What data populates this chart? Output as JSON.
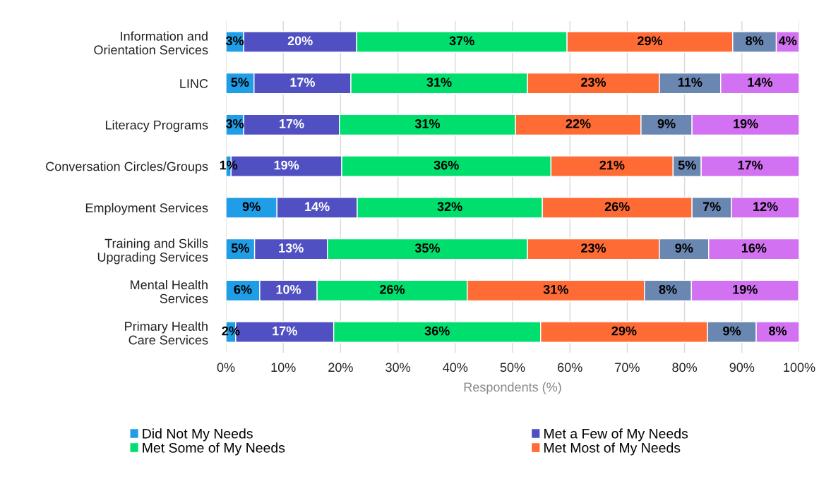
{
  "chart_data": {
    "type": "bar",
    "orientation": "horizontal",
    "stacked": true,
    "categories": [
      "Information and\nOrientation Services",
      "LINC",
      "Literacy Programs",
      "Conversation Circles/Groups",
      "Employment Services",
      "Training and Skills\nUpgrading Services",
      "Mental Health\nServices",
      "Primary Health\nCare Services"
    ],
    "series": [
      {
        "name": "Did Not My Needs",
        "color": "#1f9de6",
        "values": [
          3.1,
          4.9,
          3.1,
          0.9,
          8.9,
          5.0,
          5.9,
          1.7
        ],
        "value_labels": [
          "3%",
          "5%",
          "3%",
          "1%",
          "9%",
          "5%",
          "6%",
          "2%"
        ]
      },
      {
        "name": "Met a Few of My Needs",
        "color": "#5150c2",
        "values": [
          19.7,
          16.9,
          16.7,
          19.3,
          14.0,
          12.7,
          10.0,
          17.1
        ],
        "value_labels": [
          "20%",
          "17%",
          "17%",
          "19%",
          "14%",
          "13%",
          "10%",
          "17%"
        ]
      },
      {
        "name": "Met Some of My Needs",
        "color": "#00de6e",
        "values": [
          36.7,
          30.8,
          30.7,
          36.5,
          32.3,
          34.9,
          26.2,
          36.1
        ],
        "value_labels": [
          "37%",
          "31%",
          "31%",
          "36%",
          "32%",
          "35%",
          "26%",
          "36%"
        ]
      },
      {
        "name": "Met Most of My Needs",
        "color": "#ff6b35",
        "values": [
          28.9,
          23.0,
          21.9,
          21.3,
          26.1,
          23.0,
          30.9,
          29.1
        ],
        "value_labels": [
          "29%",
          "23%",
          "22%",
          "21%",
          "26%",
          "23%",
          "31%",
          "29%"
        ]
      },
      {
        "color": "#6a87b2",
        "values": [
          7.6,
          10.7,
          8.9,
          4.9,
          6.9,
          8.6,
          8.2,
          8.5
        ],
        "value_labels": [
          "8%",
          "11%",
          "9%",
          "5%",
          "7%",
          "9%",
          "8%",
          "9%"
        ]
      },
      {
        "color": "#d272f2",
        "values": [
          4.0,
          13.7,
          18.7,
          17.1,
          11.8,
          15.8,
          18.7,
          7.5
        ],
        "value_labels": [
          "4%",
          "14%",
          "19%",
          "17%",
          "12%",
          "16%",
          "19%",
          "8%"
        ]
      }
    ],
    "xlabel": "Respondents (%)",
    "xlim": [
      0,
      100
    ],
    "xticks": [
      {
        "value": 0,
        "label": "0%"
      },
      {
        "value": 10,
        "label": "10%"
      },
      {
        "value": 20,
        "label": "20%"
      },
      {
        "value": 30,
        "label": "30%"
      },
      {
        "value": 40,
        "label": "40%"
      },
      {
        "value": 50,
        "label": "50%"
      },
      {
        "value": 60,
        "label": "60%"
      },
      {
        "value": 70,
        "label": "70%"
      },
      {
        "value": 80,
        "label": "80%"
      },
      {
        "value": 90,
        "label": "90%"
      },
      {
        "value": 100,
        "label": "100%"
      }
    ],
    "grid": "x",
    "legend": "bottom"
  }
}
